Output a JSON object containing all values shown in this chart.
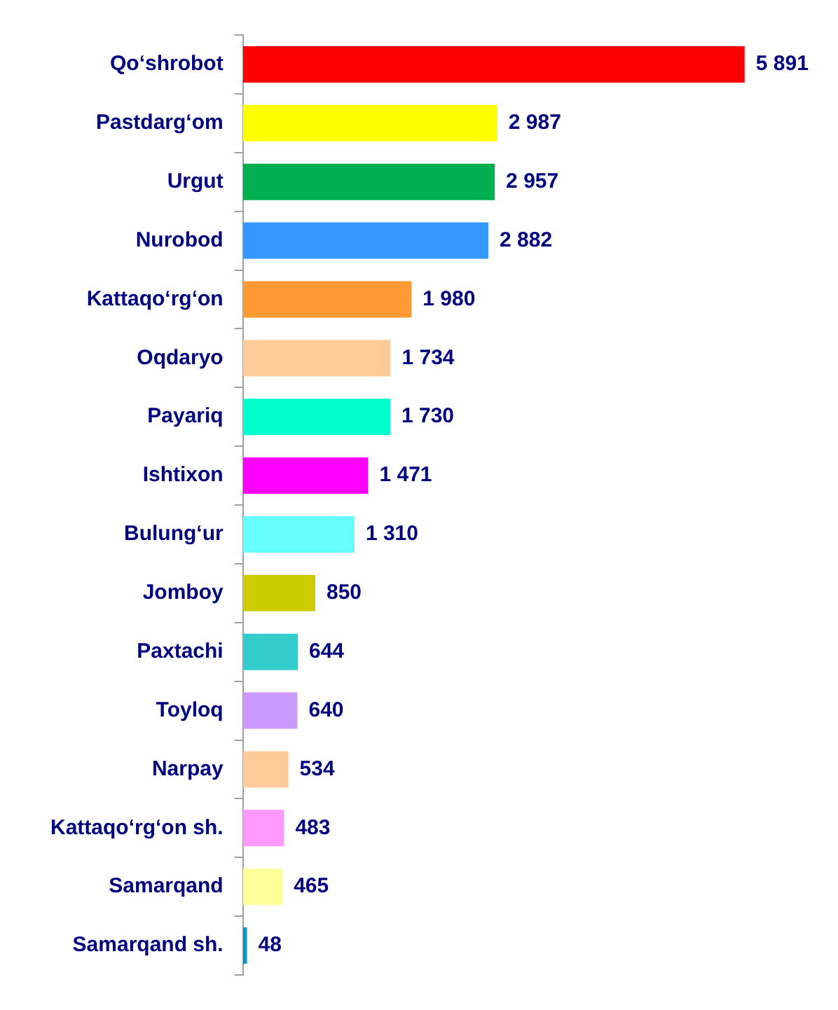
{
  "chart_data": {
    "type": "bar",
    "orientation": "horizontal",
    "tick_labels": "y",
    "categories": [
      "Qo‘shrobot",
      "Pastdarg‘om",
      "Urgut",
      "Nurobod",
      "Kattaqo‘rg‘on",
      "Oqdaryo",
      "Payariq",
      "Ishtixon",
      "Bulung‘ur",
      "Jomboy",
      "Paxtachi",
      "Toyloq",
      "Narpay",
      "Kattaqo‘rg‘on sh.",
      "Samarqand",
      "Samarqand sh."
    ],
    "values": [
      5891,
      2987,
      2957,
      2882,
      1980,
      1734,
      1730,
      1471,
      1310,
      850,
      644,
      640,
      534,
      483,
      465,
      48
    ],
    "value_labels": [
      "5 891",
      "2 987",
      "2 957",
      "2 882",
      "1 980",
      "1 734",
      "1 730",
      "1 471",
      "1 310",
      "850",
      "644",
      "640",
      "534",
      "483",
      "465",
      "48"
    ],
    "colors": [
      "#ff0000",
      "#ffff00",
      "#00b050",
      "#3399ff",
      "#ff9933",
      "#ffcc99",
      "#00ffcc",
      "#ff00ff",
      "#66ffff",
      "#cccc00",
      "#33cccc",
      "#cc99ff",
      "#ffcc99",
      "#ff99ff",
      "#ffff99",
      "#0099cc"
    ]
  }
}
